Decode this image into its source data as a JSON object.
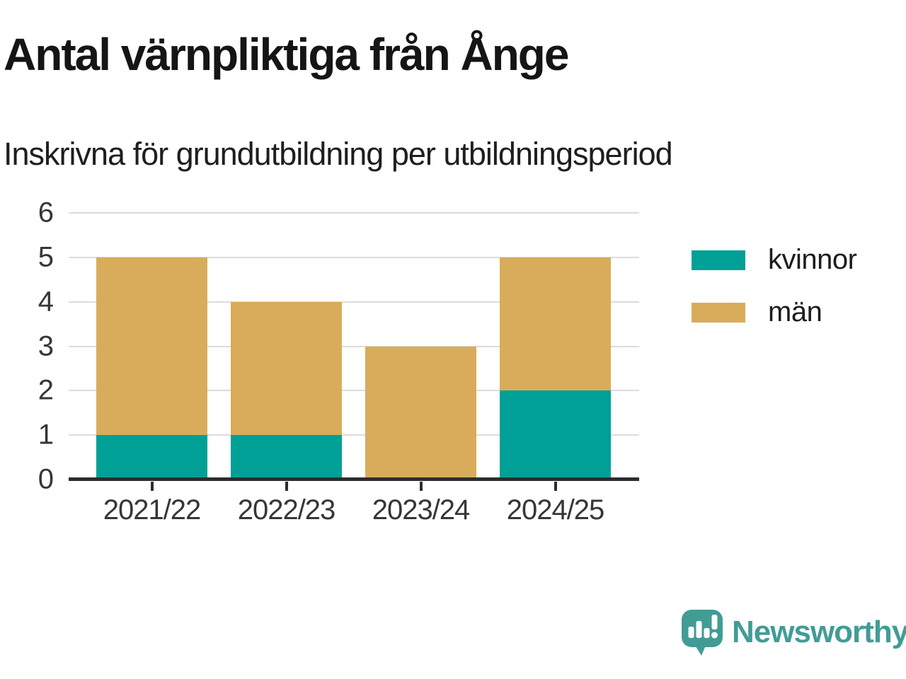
{
  "header": {
    "title": "Antal värnpliktiga från Ånge",
    "subtitle": "Inskrivna för grundutbildning per utbildningsperiod"
  },
  "chart_data": {
    "type": "bar",
    "stacked": true,
    "title": "Antal värnpliktiga från Ånge",
    "subtitle": "Inskrivna för grundutbildning per utbildningsperiod",
    "categories": [
      "2021/22",
      "2022/23",
      "2023/24",
      "2024/25"
    ],
    "series": [
      {
        "name": "kvinnor",
        "color": "#00A096",
        "values": [
          1,
          1,
          0,
          2
        ]
      },
      {
        "name": "män",
        "color": "#D9AC5B",
        "values": [
          4,
          3,
          3,
          3
        ]
      }
    ],
    "stack_totals": [
      5,
      4,
      3,
      5
    ],
    "xlabel": "",
    "ylabel": "",
    "ylim": [
      0,
      6
    ],
    "yticks": [
      0,
      1,
      2,
      3,
      4,
      5,
      6
    ],
    "grid": true,
    "legend_position": "right"
  },
  "branding": {
    "wordmark": "Newsworthy",
    "color": "#429C95",
    "icon": "newsworthy-speech-bubble-chart-icon"
  },
  "colors": {
    "kvinnor": "#00A096",
    "man": "#D9AC5B",
    "grid": "#DCDCDC",
    "axis": "#2D2D2D",
    "title_text": "#151515",
    "tick_text": "#363636"
  }
}
